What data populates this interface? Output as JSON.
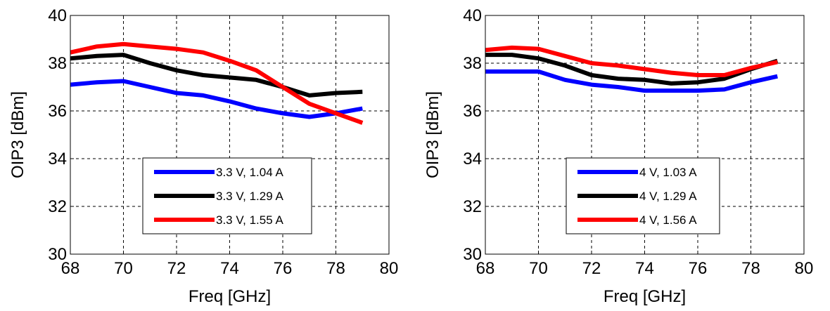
{
  "colors": {
    "blue": "#0000ff",
    "black": "#000000",
    "red": "#ff0000",
    "grid": "#000000"
  },
  "chart_data": [
    {
      "type": "line",
      "xlabel": "Freq [GHz]",
      "ylabel": "OIP3 [dBm]",
      "xlim": [
        68,
        80
      ],
      "ylim": [
        30,
        40
      ],
      "xticks": [
        "68",
        "70",
        "72",
        "74",
        "76",
        "78",
        "80"
      ],
      "yticks": [
        "30",
        "32",
        "34",
        "36",
        "38",
        "40"
      ],
      "grid": true,
      "legend_position": "bottom-center",
      "series": [
        {
          "name": "3.3 V, 1.04 A",
          "color": "blue",
          "x": [
            68,
            69,
            70,
            71,
            72,
            73,
            74,
            75,
            76,
            77,
            78,
            79
          ],
          "y": [
            37.1,
            37.2,
            37.25,
            37.0,
            36.75,
            36.65,
            36.4,
            36.1,
            35.9,
            35.75,
            35.9,
            36.1
          ]
        },
        {
          "name": "3.3 V, 1.29 A",
          "color": "black",
          "x": [
            68,
            69,
            70,
            71,
            72,
            73,
            74,
            75,
            76,
            77,
            78,
            79
          ],
          "y": [
            38.2,
            38.3,
            38.35,
            38.0,
            37.7,
            37.5,
            37.4,
            37.3,
            37.0,
            36.65,
            36.75,
            36.8
          ]
        },
        {
          "name": "3.3 V, 1.55 A",
          "color": "red",
          "x": [
            68,
            69,
            70,
            71,
            72,
            73,
            74,
            75,
            76,
            77,
            78,
            79
          ],
          "y": [
            38.45,
            38.7,
            38.8,
            38.7,
            38.6,
            38.45,
            38.1,
            37.7,
            37.0,
            36.3,
            35.9,
            35.5
          ]
        }
      ]
    },
    {
      "type": "line",
      "xlabel": "Freq [GHz]",
      "ylabel": "OIP3 [dBm]",
      "xlim": [
        68,
        80
      ],
      "ylim": [
        30,
        40
      ],
      "xticks": [
        "68",
        "70",
        "72",
        "74",
        "76",
        "78",
        "80"
      ],
      "yticks": [
        "30",
        "32",
        "34",
        "36",
        "38",
        "40"
      ],
      "grid": true,
      "legend_position": "bottom-center",
      "series": [
        {
          "name": "4 V, 1.03 A",
          "color": "blue",
          "x": [
            68,
            69,
            70,
            71,
            72,
            73,
            74,
            75,
            76,
            77,
            78,
            79
          ],
          "y": [
            37.65,
            37.65,
            37.65,
            37.3,
            37.1,
            37.0,
            36.85,
            36.85,
            36.85,
            36.9,
            37.2,
            37.45
          ]
        },
        {
          "name": "4 V, 1.29 A",
          "color": "black",
          "x": [
            68,
            69,
            70,
            71,
            72,
            73,
            74,
            75,
            76,
            77,
            78,
            79
          ],
          "y": [
            38.35,
            38.35,
            38.2,
            37.9,
            37.5,
            37.35,
            37.3,
            37.15,
            37.2,
            37.35,
            37.75,
            38.1
          ]
        },
        {
          "name": "4 V, 1.56 A",
          "color": "red",
          "x": [
            68,
            69,
            70,
            71,
            72,
            73,
            74,
            75,
            76,
            77,
            78,
            79
          ],
          "y": [
            38.55,
            38.65,
            38.6,
            38.3,
            38.0,
            37.9,
            37.75,
            37.6,
            37.5,
            37.5,
            37.8,
            38.05
          ]
        }
      ]
    }
  ]
}
